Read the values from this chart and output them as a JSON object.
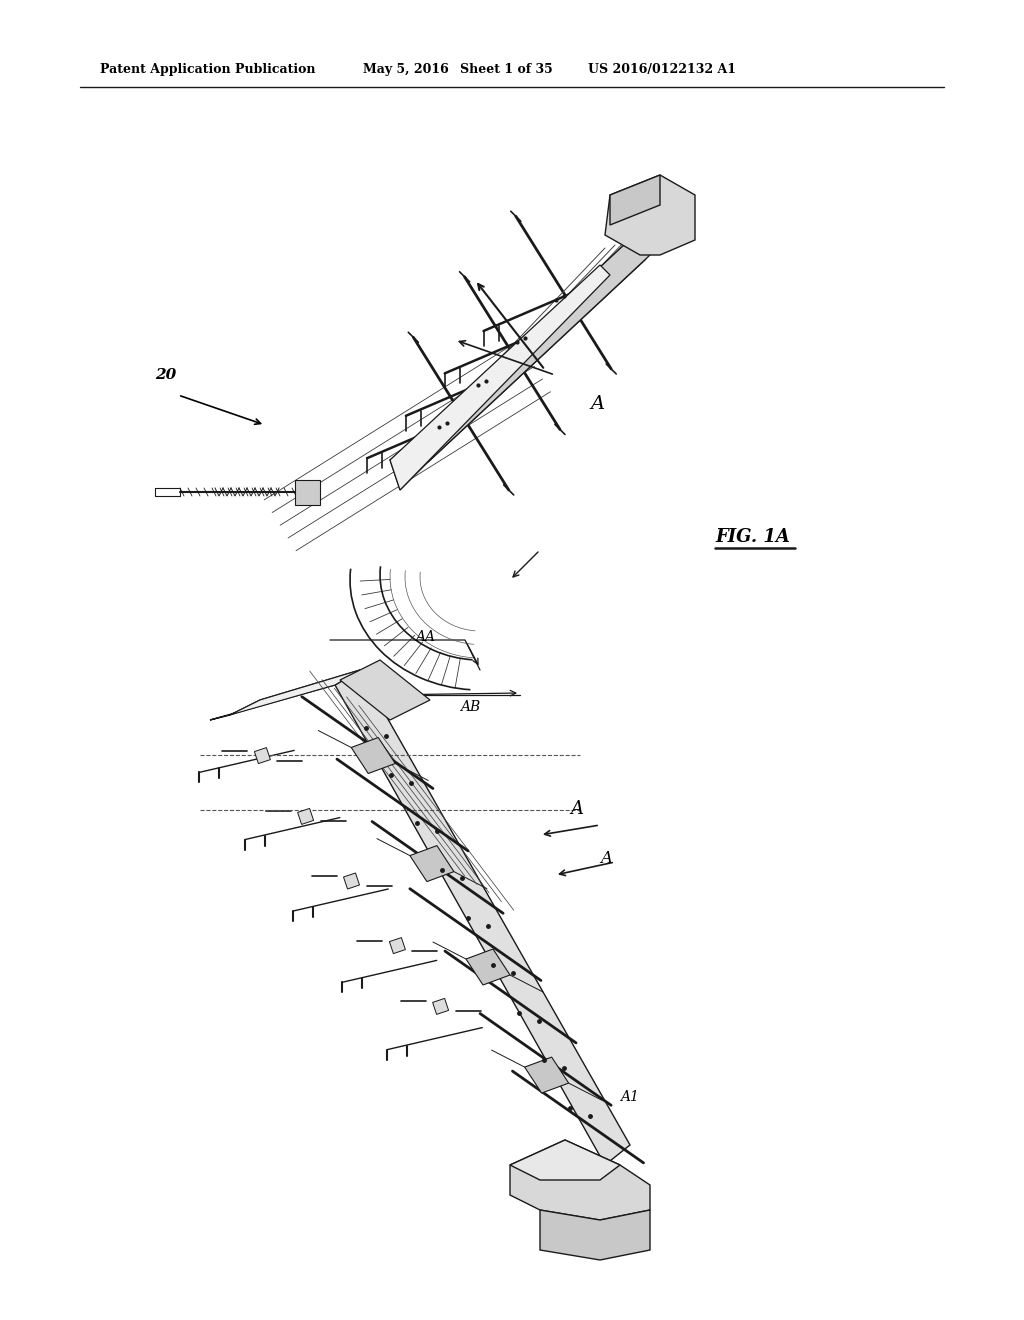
{
  "background_color": "#ffffff",
  "header_line1": "Patent Application Publication",
  "header_date": "May 5, 2016",
  "header_sheet": "Sheet 1 of 35",
  "header_patent": "US 2016/0122132 A1",
  "figure_label": "FIG. 1A",
  "ref_20": "20",
  "ref_A": "A",
  "ref_AA": "AA",
  "ref_AB": "AB",
  "ref_A2": "A",
  "ref_A3": "A1"
}
